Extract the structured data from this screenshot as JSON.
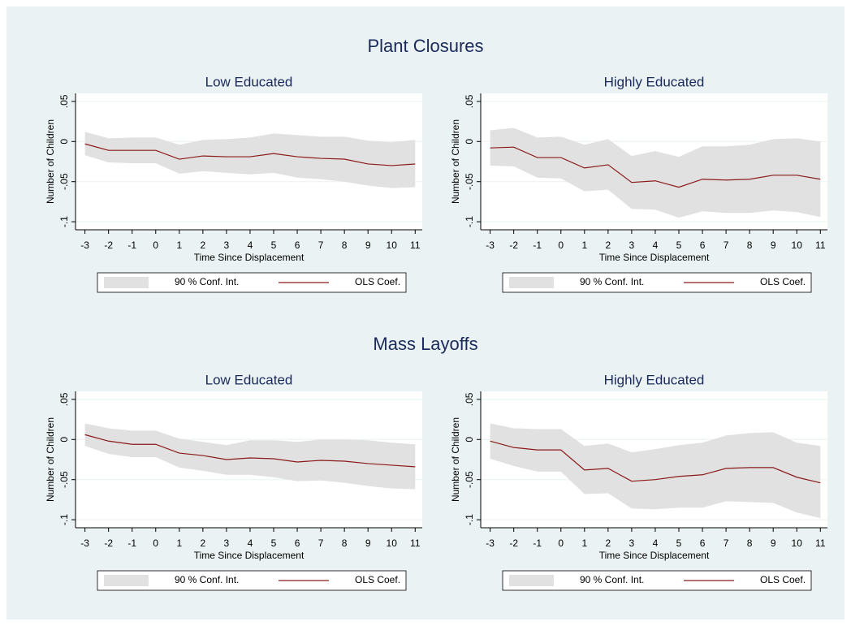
{
  "headings": [
    "Plant Closures",
    "Mass Layoffs"
  ],
  "chart_data": [
    {
      "type": "line",
      "title": "Low Educated",
      "xlabel": "Time Since Displacement",
      "ylabel": "Number of Children",
      "x": [
        -3,
        -2,
        -1,
        0,
        1,
        2,
        3,
        4,
        5,
        6,
        7,
        8,
        9,
        10,
        11
      ],
      "xlim": [
        -3.4,
        11.3
      ],
      "xticks": [
        -3,
        -2,
        -1,
        0,
        1,
        2,
        3,
        4,
        5,
        6,
        7,
        8,
        9,
        10,
        11
      ],
      "ylim": [
        -0.11,
        0.06
      ],
      "yticks": [
        {
          "value": -0.1,
          "label": "-.1"
        },
        {
          "value": -0.05,
          "label": "-.05"
        },
        {
          "value": 0,
          "label": "0"
        },
        {
          "value": 0.05,
          "label": ".05"
        }
      ],
      "grid": true,
      "band": {
        "name": "90 % Conf. Int.",
        "color": "#e1e1e1",
        "upper": [
          0.012,
          0.004,
          0.005,
          0.005,
          -0.004,
          0.002,
          0.003,
          0.005,
          0.01,
          0.008,
          0.006,
          0.006,
          0.001,
          -0.001,
          0.002
        ],
        "lower": [
          -0.017,
          -0.026,
          -0.027,
          -0.027,
          -0.04,
          -0.037,
          -0.039,
          -0.041,
          -0.039,
          -0.045,
          -0.047,
          -0.05,
          -0.055,
          -0.058,
          -0.057
        ]
      },
      "series": [
        {
          "name": "OLS Coef.",
          "color": "#8b1a1a",
          "values": [
            -0.003,
            -0.011,
            -0.011,
            -0.011,
            -0.022,
            -0.018,
            -0.019,
            -0.019,
            -0.015,
            -0.019,
            -0.021,
            -0.022,
            -0.028,
            -0.03,
            -0.028
          ]
        }
      ]
    },
    {
      "type": "line",
      "title": "Highly Educated",
      "xlabel": "Time Since Displacement",
      "ylabel": "Number of Children",
      "x": [
        -3,
        -2,
        -1,
        0,
        1,
        2,
        3,
        4,
        5,
        6,
        7,
        8,
        9,
        10,
        11
      ],
      "xlim": [
        -3.4,
        11.3
      ],
      "xticks": [
        -3,
        -2,
        -1,
        0,
        1,
        2,
        3,
        4,
        5,
        6,
        7,
        8,
        9,
        10,
        11
      ],
      "ylim": [
        -0.11,
        0.06
      ],
      "yticks": [
        {
          "value": -0.1,
          "label": "-.1"
        },
        {
          "value": -0.05,
          "label": "-.05"
        },
        {
          "value": 0,
          "label": "0"
        },
        {
          "value": 0.05,
          "label": ".05"
        }
      ],
      "grid": true,
      "band": {
        "name": "90 % Conf. Int.",
        "color": "#e1e1e1",
        "upper": [
          0.014,
          0.017,
          0.005,
          0.006,
          -0.004,
          0.003,
          -0.018,
          -0.012,
          -0.019,
          -0.006,
          -0.006,
          -0.004,
          0.003,
          0.004,
          0.0
        ],
        "lower": [
          -0.03,
          -0.031,
          -0.045,
          -0.046,
          -0.062,
          -0.06,
          -0.084,
          -0.085,
          -0.095,
          -0.087,
          -0.089,
          -0.089,
          -0.086,
          -0.088,
          -0.094
        ]
      },
      "series": [
        {
          "name": "OLS Coef.",
          "color": "#8b1a1a",
          "values": [
            -0.008,
            -0.007,
            -0.02,
            -0.02,
            -0.033,
            -0.029,
            -0.051,
            -0.049,
            -0.057,
            -0.047,
            -0.048,
            -0.047,
            -0.042,
            -0.042,
            -0.047
          ]
        }
      ]
    },
    {
      "type": "line",
      "title": "Low Educated",
      "xlabel": "Time Since Displacement",
      "ylabel": "Number of Children",
      "x": [
        -3,
        -2,
        -1,
        0,
        1,
        2,
        3,
        4,
        5,
        6,
        7,
        8,
        9,
        10,
        11
      ],
      "xlim": [
        -3.4,
        11.3
      ],
      "xticks": [
        -3,
        -2,
        -1,
        0,
        1,
        2,
        3,
        4,
        5,
        6,
        7,
        8,
        9,
        10,
        11
      ],
      "ylim": [
        -0.11,
        0.06
      ],
      "yticks": [
        {
          "value": -0.1,
          "label": "-.1"
        },
        {
          "value": -0.05,
          "label": "-.05"
        },
        {
          "value": 0,
          "label": "0"
        },
        {
          "value": 0.05,
          "label": ".05"
        }
      ],
      "grid": true,
      "band": {
        "name": "90 % Conf. Int.",
        "color": "#e1e1e1",
        "upper": [
          0.02,
          0.014,
          0.011,
          0.011,
          0.001,
          -0.003,
          -0.007,
          -0.001,
          -0.001,
          -0.003,
          0.0,
          0.0,
          -0.001,
          -0.004,
          -0.006
        ],
        "lower": [
          -0.008,
          -0.018,
          -0.022,
          -0.022,
          -0.035,
          -0.039,
          -0.044,
          -0.044,
          -0.047,
          -0.052,
          -0.051,
          -0.054,
          -0.058,
          -0.061,
          -0.062
        ]
      },
      "series": [
        {
          "name": "OLS Coef.",
          "color": "#8b1a1a",
          "values": [
            0.006,
            -0.002,
            -0.006,
            -0.006,
            -0.017,
            -0.02,
            -0.025,
            -0.023,
            -0.024,
            -0.028,
            -0.026,
            -0.027,
            -0.03,
            -0.032,
            -0.034
          ]
        }
      ]
    },
    {
      "type": "line",
      "title": "Highly Educated",
      "xlabel": "Time Since Displacement",
      "ylabel": "Number of Children",
      "x": [
        -3,
        -2,
        -1,
        0,
        1,
        2,
        3,
        4,
        5,
        6,
        7,
        8,
        9,
        10,
        11
      ],
      "xlim": [
        -3.4,
        11.3
      ],
      "xticks": [
        -3,
        -2,
        -1,
        0,
        1,
        2,
        3,
        4,
        5,
        6,
        7,
        8,
        9,
        10,
        11
      ],
      "ylim": [
        -0.11,
        0.06
      ],
      "yticks": [
        {
          "value": -0.1,
          "label": "-.1"
        },
        {
          "value": -0.05,
          "label": "-.05"
        },
        {
          "value": 0,
          "label": "0"
        },
        {
          "value": 0.05,
          "label": ".05"
        }
      ],
      "grid": true,
      "band": {
        "name": "90 % Conf. Int.",
        "color": "#e1e1e1",
        "upper": [
          0.02,
          0.014,
          0.013,
          0.013,
          -0.008,
          -0.005,
          -0.016,
          -0.012,
          -0.007,
          -0.004,
          0.005,
          0.008,
          0.009,
          -0.004,
          -0.008
        ],
        "lower": [
          -0.024,
          -0.033,
          -0.04,
          -0.04,
          -0.068,
          -0.067,
          -0.086,
          -0.087,
          -0.085,
          -0.085,
          -0.077,
          -0.078,
          -0.079,
          -0.091,
          -0.098
        ]
      },
      "series": [
        {
          "name": "OLS Coef.",
          "color": "#8b1a1a",
          "values": [
            -0.002,
            -0.01,
            -0.013,
            -0.013,
            -0.038,
            -0.036,
            -0.052,
            -0.05,
            -0.046,
            -0.044,
            -0.036,
            -0.035,
            -0.035,
            -0.047,
            -0.054
          ]
        }
      ]
    }
  ]
}
